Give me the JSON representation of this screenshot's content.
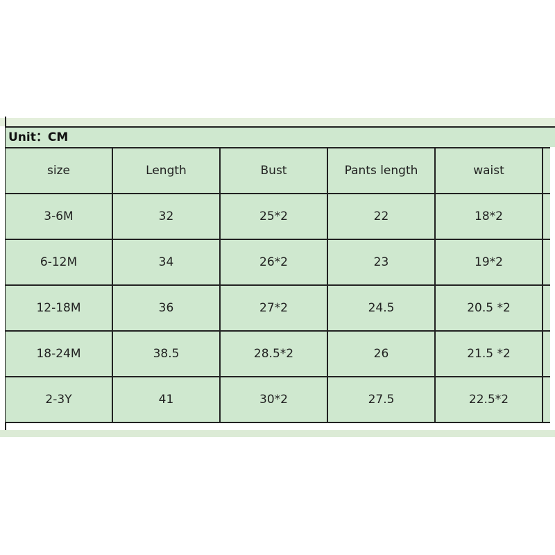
{
  "unit_label": "Unit：CM",
  "headers": [
    "size",
    "Length",
    "Bust",
    "Pants length",
    "waist"
  ],
  "rows": [
    [
      "3-6M",
      "32",
      "25*2",
      "22",
      "18*2"
    ],
    [
      "6-12M",
      "34",
      "26*2",
      "23",
      "19*2"
    ],
    [
      "12-18M",
      "36",
      "27*2",
      "24.5",
      "20.5 *2"
    ],
    [
      "18-24M",
      "38.5",
      "28.5*2",
      "26",
      "21.5 *2"
    ],
    [
      "2-3Y",
      "41",
      "30*2",
      "27.5",
      "22.5*2"
    ]
  ]
}
